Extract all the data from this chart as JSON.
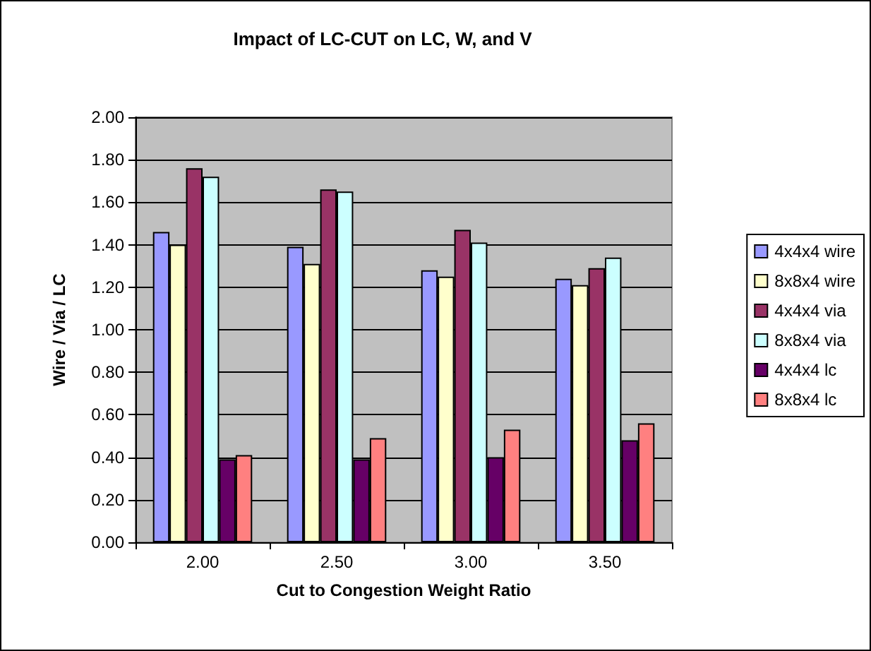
{
  "chart_data": {
    "type": "bar",
    "title": "Impact of LC-CUT on LC, W, and V",
    "xlabel": "Cut to Congestion Weight Ratio",
    "ylabel": "Wire / Via / LC",
    "categories": [
      "2.00",
      "2.50",
      "3.00",
      "3.50"
    ],
    "series": [
      {
        "name": "4x4x4 wire",
        "color": "#9999ff",
        "values": [
          1.46,
          1.39,
          1.28,
          1.24
        ]
      },
      {
        "name": "8x8x4 wire",
        "color": "#ffffcc",
        "values": [
          1.4,
          1.31,
          1.25,
          1.21
        ]
      },
      {
        "name": "4x4x4 via",
        "color": "#993366",
        "values": [
          1.76,
          1.66,
          1.47,
          1.29
        ]
      },
      {
        "name": "8x8x4 via",
        "color": "#ccffff",
        "values": [
          1.72,
          1.65,
          1.41,
          1.34
        ]
      },
      {
        "name": "4x4x4 lc",
        "color": "#660066",
        "values": [
          0.39,
          0.39,
          0.4,
          0.48
        ]
      },
      {
        "name": "8x8x4 lc",
        "color": "#ff8080",
        "values": [
          0.41,
          0.49,
          0.53,
          0.56
        ]
      }
    ],
    "ylim": [
      0,
      2
    ],
    "yticks": [
      {
        "value": 0,
        "label": "0.00"
      },
      {
        "value": 0.2,
        "label": "0.20"
      },
      {
        "value": 0.4,
        "label": "0.40"
      },
      {
        "value": 0.6,
        "label": "0.60"
      },
      {
        "value": 0.8,
        "label": "0.80"
      },
      {
        "value": 1,
        "label": "1.00"
      },
      {
        "value": 1.2,
        "label": "1.20"
      },
      {
        "value": 1.4,
        "label": "1.40"
      },
      {
        "value": 1.6,
        "label": "1.60"
      },
      {
        "value": 1.8,
        "label": "1.80"
      },
      {
        "value": 2,
        "label": "2.00"
      }
    ],
    "grid": "y",
    "legend": "right"
  }
}
